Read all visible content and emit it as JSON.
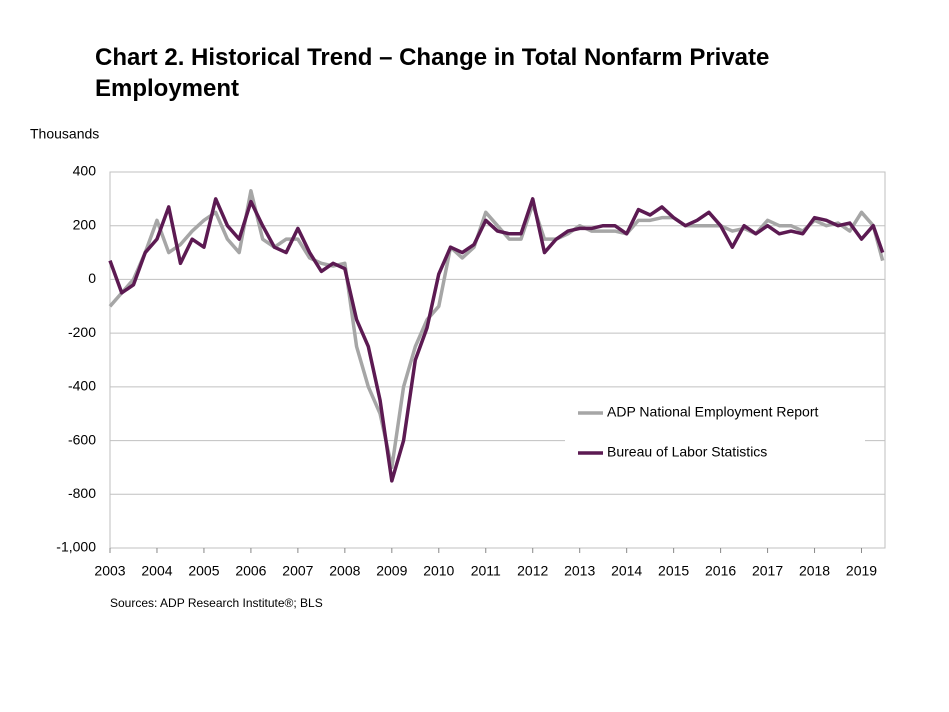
{
  "chart_data": {
    "type": "line",
    "title": "Chart 2. Historical Trend – Change in Total Nonfarm Private Employment",
    "y_label": "Thousands",
    "source": "Sources: ADP Research Institute®; BLS",
    "x": [
      2003,
      2003.25,
      2003.5,
      2003.75,
      2004,
      2004.25,
      2004.5,
      2004.75,
      2005,
      2005.25,
      2005.5,
      2005.75,
      2006,
      2006.25,
      2006.5,
      2006.75,
      2007,
      2007.25,
      2007.5,
      2007.75,
      2008,
      2008.25,
      2008.5,
      2008.75,
      2009,
      2009.25,
      2009.5,
      2009.75,
      2010,
      2010.25,
      2010.5,
      2010.75,
      2011,
      2011.25,
      2011.5,
      2011.75,
      2012,
      2012.25,
      2012.5,
      2012.75,
      2013,
      2013.25,
      2013.5,
      2013.75,
      2014,
      2014.25,
      2014.5,
      2014.75,
      2015,
      2015.25,
      2015.5,
      2015.75,
      2016,
      2016.25,
      2016.5,
      2016.75,
      2017,
      2017.25,
      2017.5,
      2017.75,
      2018,
      2018.25,
      2018.5,
      2018.75,
      2019,
      2019.25,
      2019.45
    ],
    "series": [
      {
        "name": "ADP National Employment Report",
        "color": "#a6a6a6",
        "values": [
          -100,
          -50,
          0,
          100,
          220,
          100,
          130,
          180,
          220,
          250,
          150,
          100,
          330,
          150,
          120,
          150,
          150,
          80,
          60,
          50,
          60,
          -250,
          -400,
          -500,
          -700,
          -400,
          -250,
          -150,
          -100,
          120,
          80,
          120,
          250,
          200,
          150,
          150,
          280,
          150,
          150,
          170,
          200,
          180,
          180,
          180,
          170,
          220,
          220,
          230,
          230,
          200,
          200,
          200,
          200,
          180,
          190,
          170,
          220,
          200,
          200,
          180,
          220,
          200,
          210,
          180,
          250,
          200,
          70
        ]
      },
      {
        "name": "Bureau of Labor Statistics",
        "color": "#5c1a52",
        "values": [
          70,
          -50,
          -20,
          100,
          150,
          270,
          60,
          150,
          120,
          300,
          200,
          150,
          290,
          200,
          120,
          100,
          190,
          100,
          30,
          60,
          40,
          -150,
          -250,
          -450,
          -750,
          -600,
          -300,
          -180,
          20,
          120,
          100,
          130,
          220,
          180,
          170,
          170,
          300,
          100,
          150,
          180,
          190,
          190,
          200,
          200,
          170,
          260,
          240,
          270,
          230,
          200,
          220,
          250,
          200,
          120,
          200,
          170,
          200,
          170,
          180,
          170,
          230,
          220,
          200,
          210,
          150,
          200,
          100
        ]
      }
    ],
    "xlim": [
      2003,
      2019.5
    ],
    "xticks": [
      2003,
      2004,
      2005,
      2006,
      2007,
      2008,
      2009,
      2010,
      2011,
      2012,
      2013,
      2014,
      2015,
      2016,
      2017,
      2018,
      2019
    ],
    "ylim": [
      -1000,
      400
    ],
    "yticks": [
      {
        "value": -1000,
        "label": "-1,000"
      },
      -800,
      -600,
      -400,
      -200,
      0,
      200,
      400
    ],
    "grid": true,
    "legend": "right"
  }
}
